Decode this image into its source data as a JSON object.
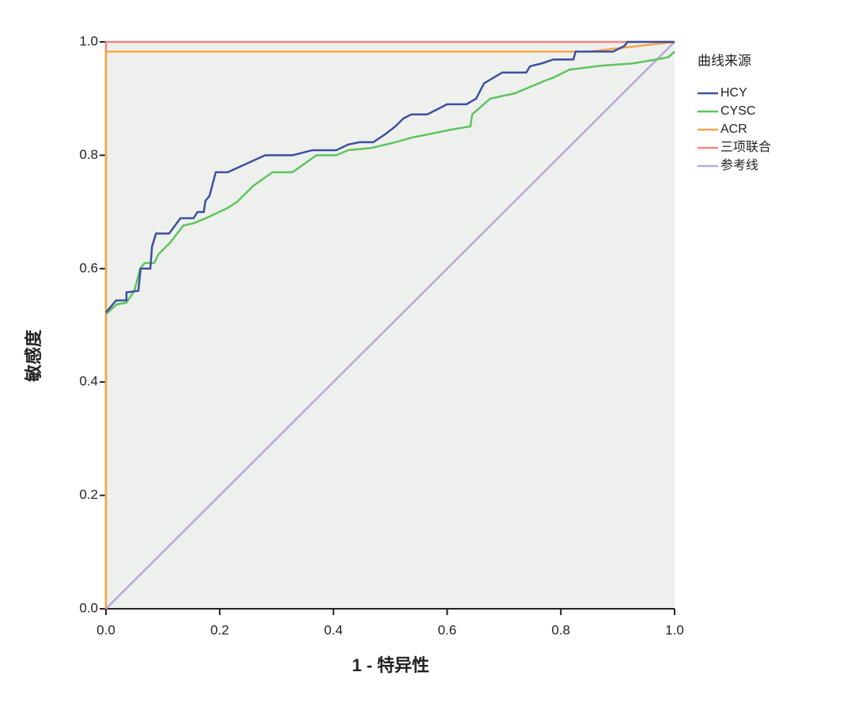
{
  "chart_data": {
    "type": "line",
    "x_label": "1 - 特异性",
    "y_label": "敏感度",
    "legend_title": "曲线来源",
    "xlim": [
      0,
      1
    ],
    "ylim": [
      0,
      1
    ],
    "xticks": [
      {
        "value": 0,
        "label": "0.0"
      },
      0.2,
      0.4,
      0.6,
      0.8,
      {
        "value": 1,
        "label": "1.0"
      }
    ],
    "yticks": [
      {
        "value": 0,
        "label": "0.0"
      },
      0.2,
      0.4,
      0.6,
      0.8,
      {
        "value": 1,
        "label": "1.0"
      }
    ],
    "legend": "right",
    "background": "#eef0ee",
    "series": [
      {
        "name": "HCY",
        "color": "#3d4f9c",
        "x": [
          0,
          0.018,
          0.036,
          0.036,
          0.057,
          0.061,
          0.078,
          0.081,
          0.088,
          0.111,
          0.131,
          0.154,
          0.161,
          0.172,
          0.175,
          0.182,
          0.193,
          0.214,
          0.28,
          0.328,
          0.363,
          0.405,
          0.426,
          0.446,
          0.47,
          0.491,
          0.509,
          0.523,
          0.537,
          0.565,
          0.6,
          0.634,
          0.651,
          0.665,
          0.697,
          0.739,
          0.746,
          0.766,
          0.787,
          0.822,
          0.826,
          0.892,
          0.912,
          0.917,
          1
        ],
        "values": [
          0.523,
          0.544,
          0.544,
          0.558,
          0.561,
          0.6,
          0.6,
          0.639,
          0.662,
          0.662,
          0.689,
          0.689,
          0.7,
          0.7,
          0.72,
          0.728,
          0.77,
          0.77,
          0.8,
          0.8,
          0.809,
          0.809,
          0.819,
          0.823,
          0.823,
          0.837,
          0.851,
          0.865,
          0.872,
          0.872,
          0.89,
          0.89,
          0.9,
          0.927,
          0.946,
          0.946,
          0.957,
          0.962,
          0.969,
          0.969,
          0.983,
          0.983,
          0.993,
          1,
          1
        ]
      },
      {
        "name": "CYSC",
        "color": "#5ec45e",
        "x": [
          0,
          0.019,
          0.036,
          0.05,
          0.06,
          0.068,
          0.085,
          0.092,
          0.113,
          0.136,
          0.154,
          0.178,
          0.214,
          0.231,
          0.259,
          0.293,
          0.328,
          0.37,
          0.405,
          0.426,
          0.467,
          0.509,
          0.537,
          0.606,
          0.641,
          0.644,
          0.676,
          0.718,
          0.752,
          0.773,
          0.787,
          0.815,
          0.871,
          0.926,
          0.968,
          0.989,
          1
        ],
        "values": [
          0.52,
          0.537,
          0.54,
          0.561,
          0.6,
          0.61,
          0.61,
          0.625,
          0.646,
          0.676,
          0.68,
          0.69,
          0.707,
          0.718,
          0.746,
          0.77,
          0.77,
          0.8,
          0.8,
          0.809,
          0.813,
          0.823,
          0.831,
          0.845,
          0.851,
          0.872,
          0.9,
          0.909,
          0.923,
          0.932,
          0.937,
          0.951,
          0.958,
          0.962,
          0.969,
          0.973,
          0.983
        ]
      },
      {
        "name": "ACR",
        "color": "#f5a54a",
        "x": [
          0,
          0,
          0.85,
          1
        ],
        "values": [
          0,
          0.983,
          0.983,
          1
        ]
      },
      {
        "name": "三项联合",
        "color": "#f08585",
        "x": [
          0,
          0,
          1
        ],
        "values": [
          0,
          1,
          1
        ]
      },
      {
        "name": "参考线",
        "color": "#b9a9d9",
        "x": [
          0,
          1
        ],
        "values": [
          0,
          1
        ]
      }
    ]
  }
}
